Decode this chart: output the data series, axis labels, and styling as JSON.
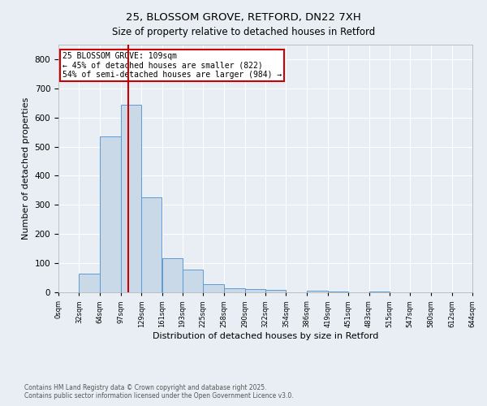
{
  "title1": "25, BLOSSOM GROVE, RETFORD, DN22 7XH",
  "title2": "Size of property relative to detached houses in Retford",
  "xlabel": "Distribution of detached houses by size in Retford",
  "ylabel": "Number of detached properties",
  "bin_edges": [
    0,
    32,
    64,
    97,
    129,
    161,
    193,
    225,
    258,
    290,
    322,
    354,
    386,
    419,
    451,
    483,
    515,
    547,
    580,
    612,
    644
  ],
  "bar_heights": [
    0,
    65,
    535,
    645,
    325,
    118,
    78,
    28,
    15,
    10,
    7,
    0,
    5,
    4,
    0,
    3,
    0,
    0,
    0,
    0
  ],
  "bar_color": "#c9d9e8",
  "bar_edgecolor": "#5b9bd5",
  "property_size": 109,
  "vline_color": "#cc0000",
  "ylim": [
    0,
    850
  ],
  "yticks": [
    0,
    100,
    200,
    300,
    400,
    500,
    600,
    700,
    800
  ],
  "annotation_text": "25 BLOSSOM GROVE: 109sqm\n← 45% of detached houses are smaller (822)\n54% of semi-detached houses are larger (984) →",
  "annotation_box_facecolor": "#ffffff",
  "annotation_box_edgecolor": "#cc0000",
  "footer1": "Contains HM Land Registry data © Crown copyright and database right 2025.",
  "footer2": "Contains public sector information licensed under the Open Government Licence v3.0.",
  "background_color": "#e8eef4",
  "grid_color": "#ffffff"
}
